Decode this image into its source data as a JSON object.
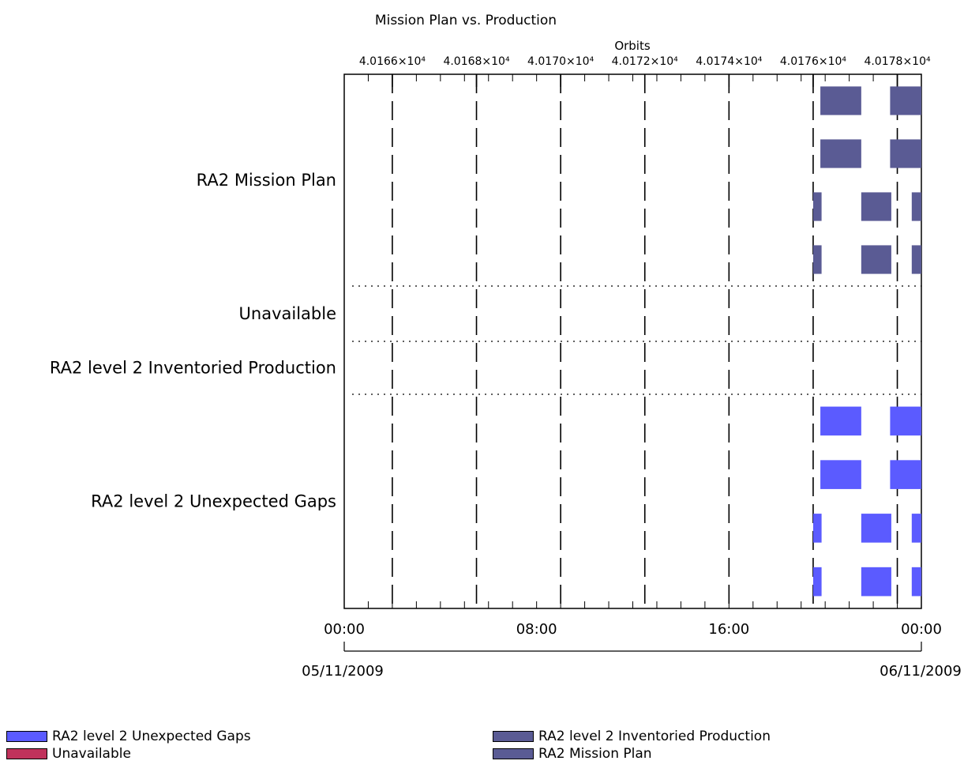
{
  "chart_data": {
    "type": "timeline",
    "title": "Mission Plan vs. Production",
    "top_axis": {
      "label": "Orbits",
      "ticks": [
        "4.0166×10⁴",
        "4.0168×10⁴",
        "4.0170×10⁴",
        "4.0172×10⁴",
        "4.0174×10⁴",
        "4.0176×10⁴",
        "4.0178×10⁴"
      ]
    },
    "bottom_axis": {
      "time_ticks": [
        "00:00",
        "08:00",
        "16:00",
        "00:00"
      ],
      "dates": [
        "05/11/2009",
        "06/11/2009"
      ],
      "range_hours": [
        0,
        24
      ]
    },
    "orbit_boundaries_hours": [
      2.0,
      5.5,
      9.0,
      12.5,
      16.0,
      19.5,
      23.0
    ],
    "categories": [
      "RA2 Mission Plan",
      "Unavailable",
      "RA2 level 2 Inventoried Production",
      "RA2 level 2 Unexpected Gaps"
    ],
    "series": [
      {
        "category": "RA2 Mission Plan",
        "color": "#5a5b94",
        "rows": [
          [
            [
              19.8,
              21.5
            ],
            [
              22.7,
              24.6
            ]
          ],
          [
            [
              19.8,
              21.5
            ],
            [
              22.7,
              24.6
            ]
          ],
          [
            [
              19.5,
              19.85
            ],
            [
              21.5,
              22.75
            ],
            [
              23.6,
              24.0
            ]
          ],
          [
            [
              19.5,
              19.85
            ],
            [
              21.5,
              22.75
            ],
            [
              23.6,
              24.0
            ]
          ]
        ]
      },
      {
        "category": "Unavailable",
        "color": "#c0325b",
        "rows": []
      },
      {
        "category": "RA2 level 2 Inventoried Production",
        "color": "#5a5b94",
        "rows": []
      },
      {
        "category": "RA2 level 2 Unexpected Gaps",
        "color": "#5b5bff",
        "rows": [
          [
            [
              19.8,
              21.5
            ],
            [
              22.7,
              24.6
            ]
          ],
          [
            [
              19.8,
              21.5
            ],
            [
              22.7,
              24.6
            ]
          ],
          [
            [
              19.5,
              19.85
            ],
            [
              21.5,
              22.75
            ],
            [
              23.6,
              24.0
            ]
          ],
          [
            [
              19.5,
              19.85
            ],
            [
              21.5,
              22.75
            ],
            [
              23.6,
              24.0
            ]
          ]
        ]
      }
    ],
    "legend": [
      {
        "label": "RA2 level 2 Unexpected Gaps",
        "color": "#5b5bff"
      },
      {
        "label": "Unavailable",
        "color": "#c0325b"
      },
      {
        "label": "RA2 level 2 Inventoried Production",
        "color": "#5a5b94"
      },
      {
        "label": "RA2 Mission Plan",
        "color": "#5a5b94"
      }
    ]
  }
}
